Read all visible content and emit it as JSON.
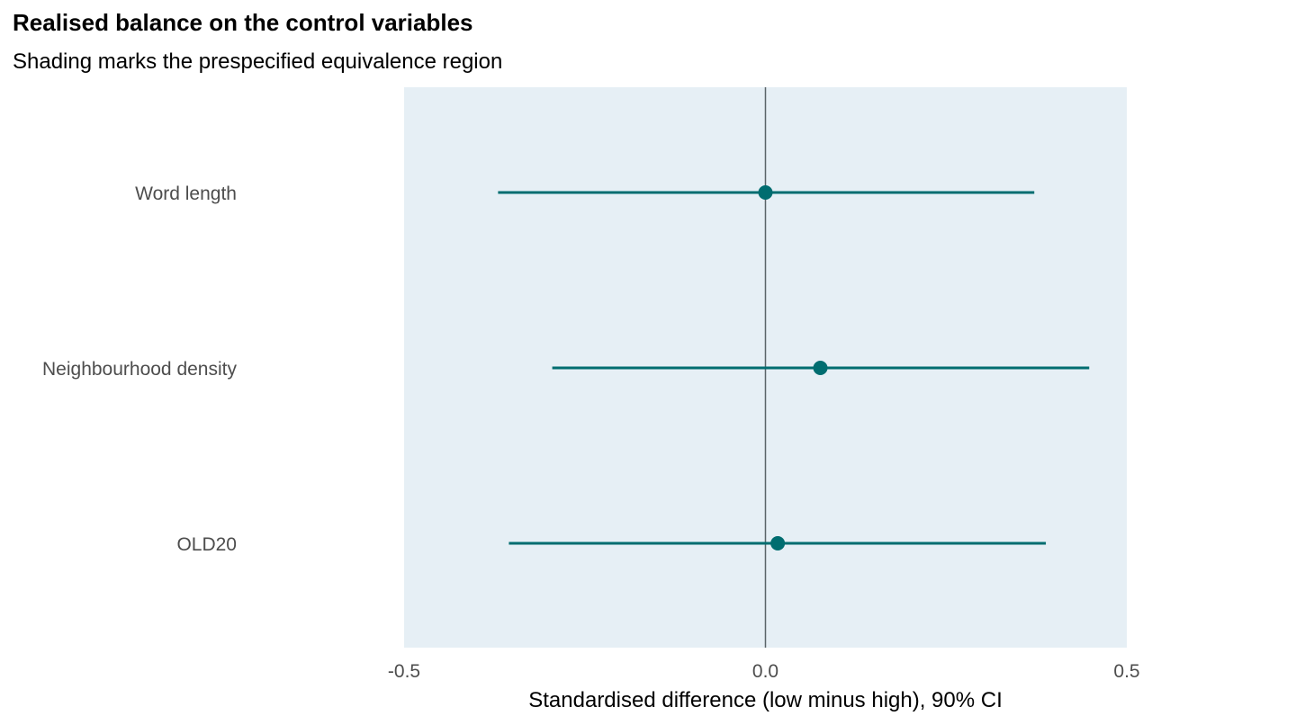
{
  "chart_data": {
    "type": "forest",
    "title": "Realised balance on the control variables",
    "subtitle": "Shading marks the prespecified equivalence region",
    "xlabel": "Standardised difference (low minus high), 90% CI",
    "ylabel": "",
    "xlim": [
      -0.5,
      0.5
    ],
    "xticks": [
      "-0.5",
      "0.0",
      "0.5"
    ],
    "xtick_values": [
      -0.5,
      0.0,
      0.5
    ],
    "equivalence_region": [
      -0.5,
      0.5
    ],
    "reference_line": 0.0,
    "grid": false,
    "colors": {
      "series": "#006d70",
      "shading": "#e6eff5",
      "reference_line": "#5a6468"
    },
    "categories": [
      "Word length",
      "Neighbourhood density",
      "OLD20"
    ],
    "estimates": [
      0.0,
      0.076,
      0.017
    ],
    "ci_lower": [
      -0.37,
      -0.295,
      -0.355
    ],
    "ci_upper": [
      0.372,
      0.448,
      0.388
    ]
  }
}
